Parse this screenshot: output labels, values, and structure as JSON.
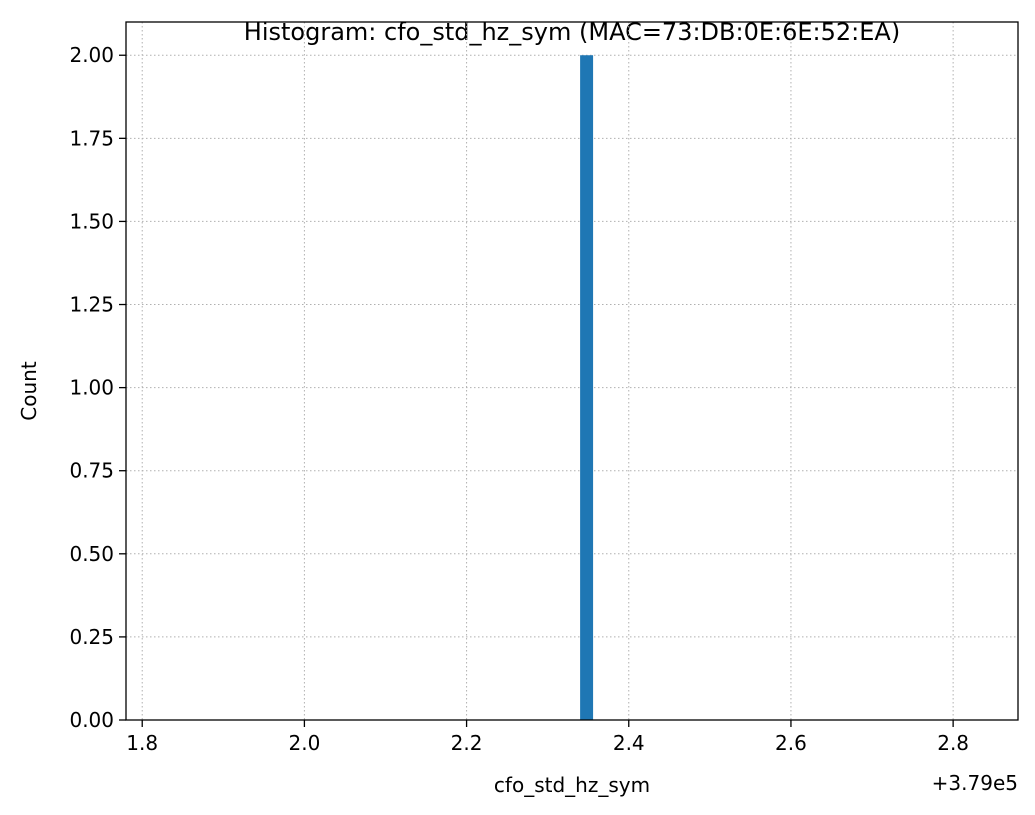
{
  "chart_data": {
    "type": "bar",
    "title": "Histogram: cfo_std_hz_sym (MAC=73:DB:0E:6E:52:EA)",
    "xlabel": "cfo_std_hz_sym",
    "ylabel": "Count",
    "x_offset_label": "+3.79e5",
    "xlim": [
      1.78,
      2.88
    ],
    "ylim": [
      0,
      2.1
    ],
    "x_ticks": [
      1.8,
      2.0,
      2.2,
      2.4,
      2.6,
      2.8
    ],
    "x_tick_labels": [
      "1.8",
      "2.0",
      "2.2",
      "2.4",
      "2.6",
      "2.8"
    ],
    "y_ticks": [
      0,
      0.25,
      0.5,
      0.75,
      1.0,
      1.25,
      1.5,
      1.75,
      2.0
    ],
    "y_tick_labels": [
      "0.00",
      "0.25",
      "0.50",
      "0.75",
      "1.00",
      "1.25",
      "1.50",
      "1.75",
      "2.00"
    ],
    "bars": [
      {
        "x_start": 2.34,
        "x_end": 2.356,
        "value": 2
      }
    ],
    "bar_color": "#1f77b4",
    "grid": true,
    "grid_style": "dotted"
  }
}
